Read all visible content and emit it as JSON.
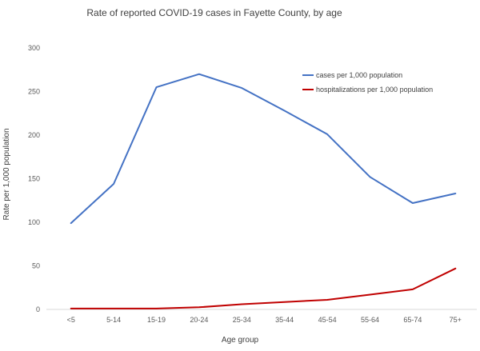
{
  "chart_data": {
    "type": "line",
    "title": "Rate of reported COVID-19 cases in Fayette County, by age",
    "xlabel": "Age group",
    "ylabel": "Rate per 1,000 population",
    "categories": [
      "<5",
      "5-14",
      "15-19",
      "20-24",
      "25-34",
      "35-44",
      "45-54",
      "55-64",
      "65-74",
      "75+"
    ],
    "ylim": [
      0,
      300
    ],
    "yticks": [
      "0",
      "50",
      "100",
      "150",
      "200",
      "250",
      "300"
    ],
    "grid": false,
    "legend_position": "top-right",
    "series": [
      {
        "name": "cases per 1,000 population",
        "color": "#4472c4",
        "values": [
          99,
          144,
          255,
          270,
          254,
          228,
          201,
          152,
          122,
          133
        ]
      },
      {
        "name": "hospitalizations per 1,000 population",
        "color": "#c00000",
        "values": [
          1,
          1,
          1,
          2.5,
          6,
          8.5,
          11,
          17,
          23,
          47
        ]
      }
    ]
  }
}
